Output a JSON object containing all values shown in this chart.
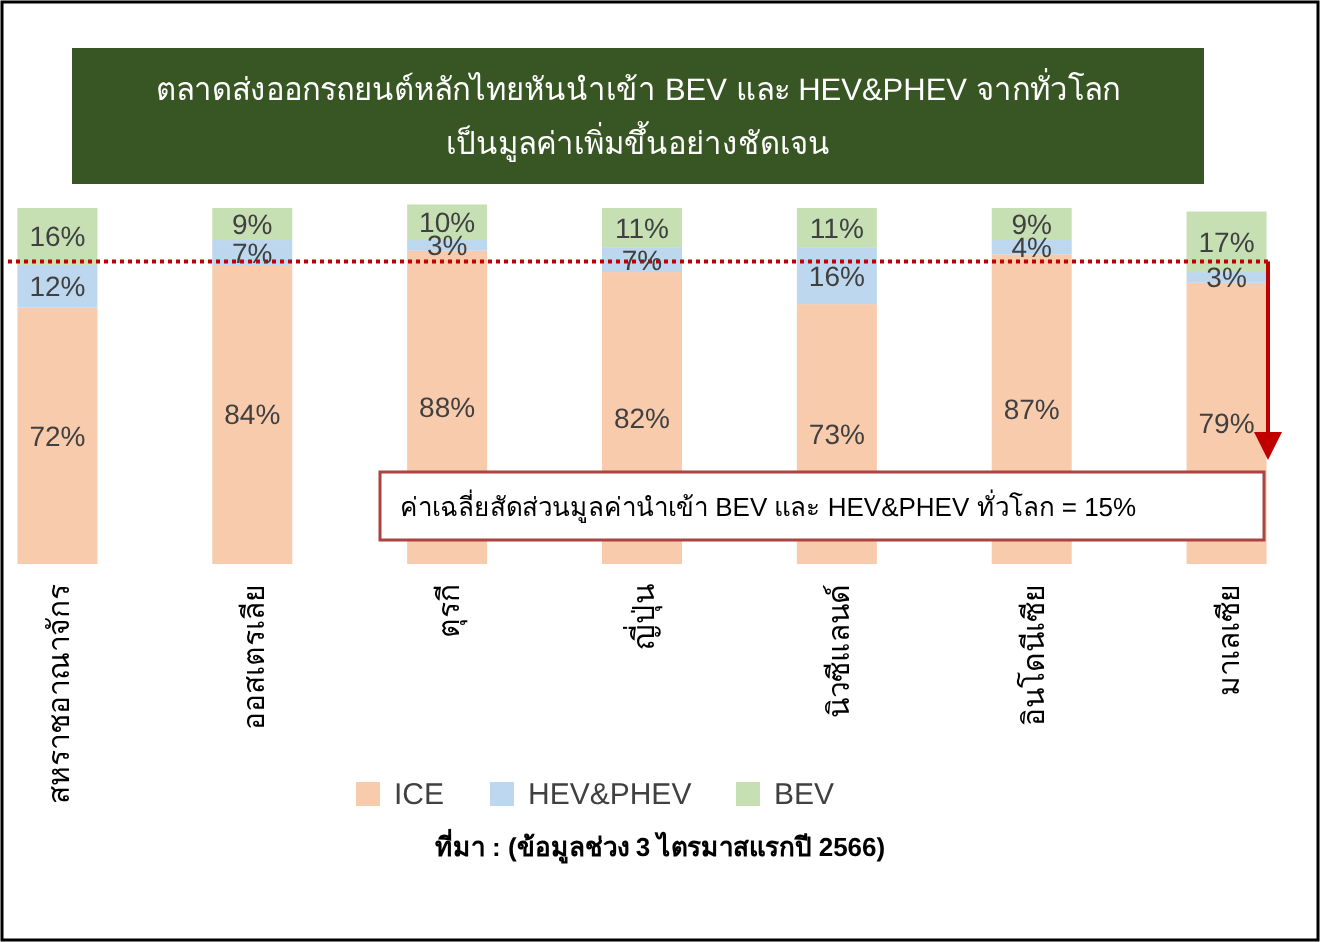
{
  "chart_data": {
    "type": "bar",
    "stacked": true,
    "title": "ตลาดส่งออกรถยนต์หลักไทยหันนำเข้า BEV และ HEV&PHEV จากทั่วโลก\nเป็นมูลค่าเพิ่มขึ้นอย่างชัดเจน",
    "categories": [
      "สหราชอาณาจักร",
      "ออสเตรเลีย",
      "ตุรกี",
      "ญี่ปุ่น",
      "นิวซีแลนด์",
      "อินโดนีเซีย",
      "มาเลเซีย"
    ],
    "series": [
      {
        "name": "ICE",
        "color": "#f8cbad",
        "values": [
          72,
          84,
          88,
          82,
          73,
          87,
          79
        ],
        "value_labels": [
          "72%",
          "84%",
          "88%",
          "82%",
          "73%",
          "87%",
          "79%"
        ]
      },
      {
        "name": "HEV&PHEV",
        "color": "#bdd7ee",
        "values": [
          12,
          7,
          3,
          7,
          16,
          4,
          3
        ],
        "value_labels": [
          "12%",
          "7%",
          "3%",
          "7%",
          "16%",
          "4%",
          "3%"
        ]
      },
      {
        "name": "BEV",
        "color": "#c6e0b4",
        "values": [
          16,
          9,
          10,
          11,
          11,
          9,
          17
        ],
        "value_labels": [
          "16%",
          "9%",
          "10%",
          "11%",
          "11%",
          "9%",
          "17%"
        ]
      }
    ],
    "ref_lines": [
      {
        "axis": "y",
        "value": 85,
        "color": "#c00000",
        "line_style": "dotted"
      }
    ],
    "legend": "bottom",
    "annotations": [
      "ค่าเฉลี่ยสัดส่วนมูลค่านำเข้า BEV และ HEV&PHEV ทั่วโลก = 15%",
      "ที่มา : (ข้อมูลช่วง 3 ไตรมาสแรกปี 2566)"
    ]
  }
}
